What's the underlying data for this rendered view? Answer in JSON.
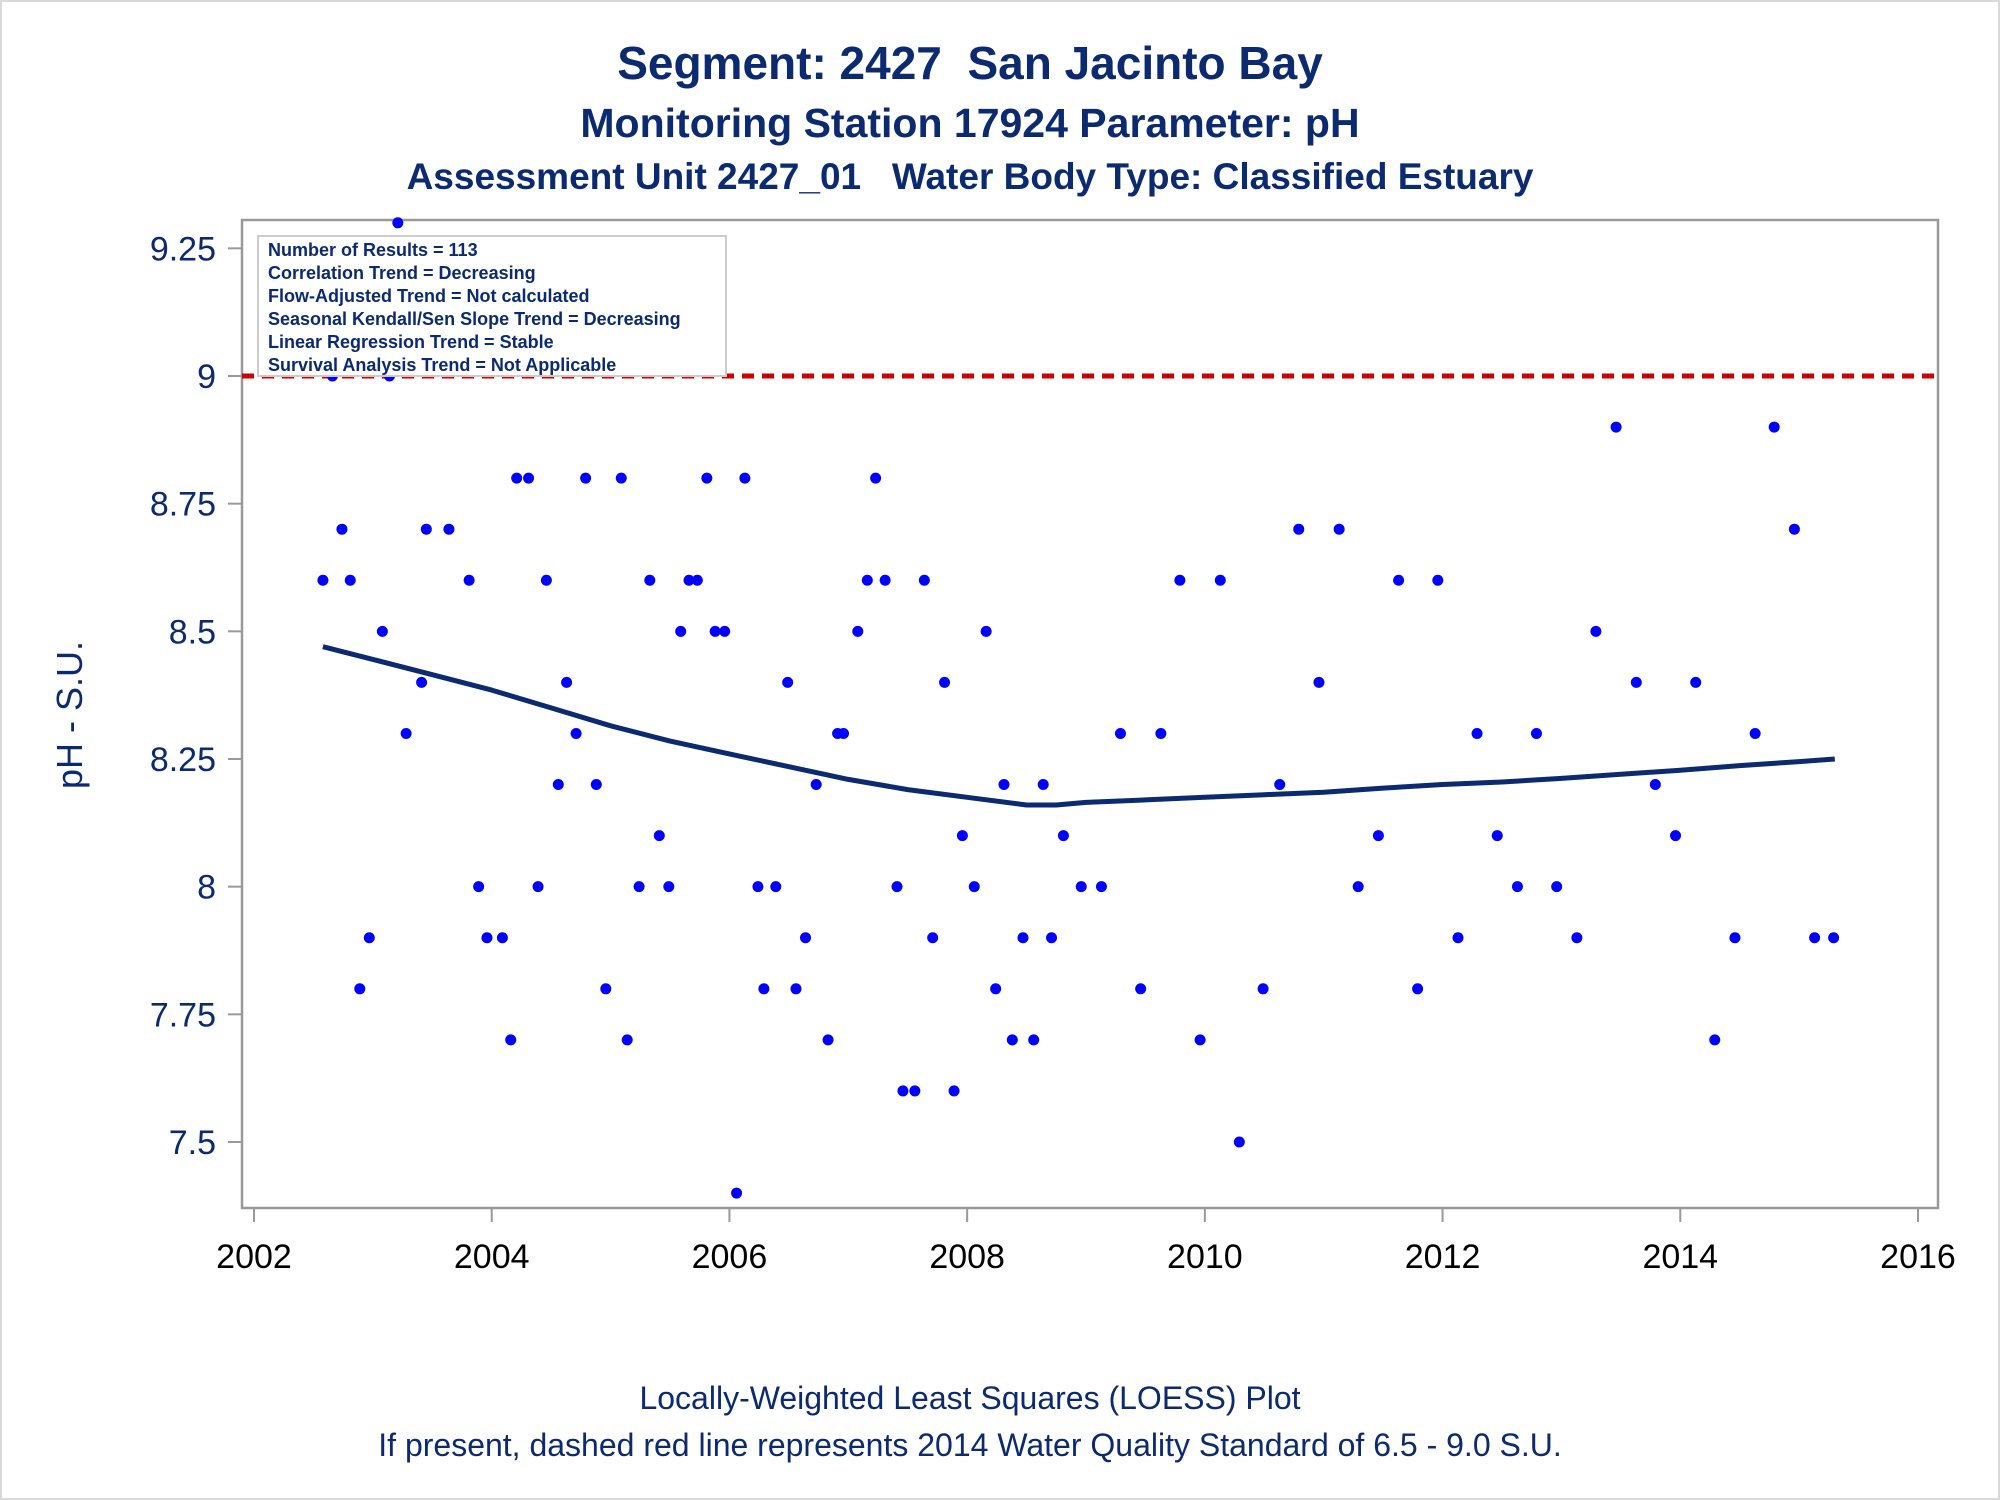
{
  "titles": {
    "line1": "Segment: 2427  San Jacinto Bay",
    "line2": "Monitoring Station 17924 Parameter: pH",
    "line3": "Assessment Unit 2427_01   Water Body Type: Classified Estuary"
  },
  "footnotes": {
    "line1": "Locally-Weighted Least Squares (LOESS) Plot",
    "line2": "If present, dashed red line represents 2014 Water Quality Standard of 6.5 - 9.0 S.U."
  },
  "stats_box": [
    "Number of Results = 113",
    "Correlation Trend = Decreasing",
    "Flow-Adjusted Trend = Not calculated",
    "Seasonal Kendall/Sen Slope Trend = Decreasing",
    "Linear Regression Trend = Stable",
    "Survival Analysis Trend = Not Applicable"
  ],
  "colors": {
    "text": "#0b2a6f",
    "points": "#0000ff",
    "loess": "#0b2a6f",
    "standard_line": "#cc0000",
    "axis": "#999999"
  },
  "chart_data": {
    "type": "scatter",
    "xlabel": "",
    "ylabel": "pH - S.U.",
    "xlim": [
      2002,
      2016
    ],
    "ylim": [
      7.4,
      9.3
    ],
    "x_ticks": [
      "2002",
      "2004",
      "2006",
      "2008",
      "2010",
      "2012",
      "2014",
      "2016"
    ],
    "y_ticks": [
      "7.5",
      "7.75",
      "8",
      "8.25",
      "8.5",
      "8.75",
      "9",
      "9.25"
    ],
    "grid": false,
    "reference_line": {
      "y": 9.0,
      "style": "dashed"
    },
    "series": [
      {
        "type": "scatter",
        "points": [
          [
            2002.58,
            8.6
          ],
          [
            2002.66,
            9.0
          ],
          [
            2002.74,
            8.7
          ],
          [
            2002.81,
            8.6
          ],
          [
            2002.89,
            7.8
          ],
          [
            2002.97,
            7.9
          ],
          [
            2003.08,
            8.5
          ],
          [
            2003.14,
            9.0
          ],
          [
            2003.21,
            9.3
          ],
          [
            2003.28,
            8.3
          ],
          [
            2003.41,
            8.4
          ],
          [
            2003.45,
            8.7
          ],
          [
            2003.64,
            8.7
          ],
          [
            2003.81,
            8.6
          ],
          [
            2003.89,
            8.0
          ],
          [
            2003.96,
            7.9
          ],
          [
            2004.09,
            7.9
          ],
          [
            2004.16,
            7.7
          ],
          [
            2004.21,
            8.8
          ],
          [
            2004.31,
            8.8
          ],
          [
            2004.39,
            8.0
          ],
          [
            2004.46,
            8.6
          ],
          [
            2004.56,
            8.2
          ],
          [
            2004.63,
            8.4
          ],
          [
            2004.71,
            8.3
          ],
          [
            2004.79,
            8.8
          ],
          [
            2004.88,
            8.2
          ],
          [
            2004.96,
            7.8
          ],
          [
            2005.09,
            8.8
          ],
          [
            2005.14,
            7.7
          ],
          [
            2005.24,
            8.0
          ],
          [
            2005.33,
            8.6
          ],
          [
            2005.41,
            8.1
          ],
          [
            2005.49,
            8.0
          ],
          [
            2005.59,
            8.5
          ],
          [
            2005.66,
            8.6
          ],
          [
            2005.73,
            8.6
          ],
          [
            2005.81,
            8.8
          ],
          [
            2005.88,
            8.5
          ],
          [
            2005.96,
            8.5
          ],
          [
            2006.06,
            7.4
          ],
          [
            2006.13,
            8.8
          ],
          [
            2006.24,
            8.0
          ],
          [
            2006.29,
            7.8
          ],
          [
            2006.39,
            8.0
          ],
          [
            2006.49,
            8.4
          ],
          [
            2006.56,
            7.8
          ],
          [
            2006.64,
            7.9
          ],
          [
            2006.73,
            8.2
          ],
          [
            2006.83,
            7.7
          ],
          [
            2006.91,
            8.3
          ],
          [
            2006.96,
            8.3
          ],
          [
            2007.08,
            8.5
          ],
          [
            2007.16,
            8.6
          ],
          [
            2007.23,
            8.8
          ],
          [
            2007.31,
            8.6
          ],
          [
            2007.41,
            8.0
          ],
          [
            2007.46,
            7.6
          ],
          [
            2007.56,
            7.6
          ],
          [
            2007.64,
            8.6
          ],
          [
            2007.71,
            7.9
          ],
          [
            2007.81,
            8.4
          ],
          [
            2007.89,
            7.6
          ],
          [
            2007.96,
            8.1
          ],
          [
            2008.06,
            8.0
          ],
          [
            2008.16,
            8.5
          ],
          [
            2008.24,
            7.8
          ],
          [
            2008.31,
            8.2
          ],
          [
            2008.38,
            7.7
          ],
          [
            2008.47,
            7.9
          ],
          [
            2008.56,
            7.7
          ],
          [
            2008.64,
            8.2
          ],
          [
            2008.71,
            7.9
          ],
          [
            2008.81,
            8.1
          ],
          [
            2008.96,
            8.0
          ],
          [
            2009.13,
            8.0
          ],
          [
            2009.29,
            8.3
          ],
          [
            2009.46,
            7.8
          ],
          [
            2009.63,
            8.3
          ],
          [
            2009.79,
            8.6
          ],
          [
            2009.96,
            7.7
          ],
          [
            2010.13,
            8.6
          ],
          [
            2010.29,
            7.5
          ],
          [
            2010.49,
            7.8
          ],
          [
            2010.63,
            8.2
          ],
          [
            2010.79,
            8.7
          ],
          [
            2010.96,
            8.4
          ],
          [
            2011.13,
            8.7
          ],
          [
            2011.29,
            8.0
          ],
          [
            2011.46,
            8.1
          ],
          [
            2011.63,
            8.6
          ],
          [
            2011.79,
            7.8
          ],
          [
            2011.96,
            8.6
          ],
          [
            2012.13,
            7.9
          ],
          [
            2012.29,
            8.3
          ],
          [
            2012.46,
            8.1
          ],
          [
            2012.63,
            8.0
          ],
          [
            2012.79,
            8.3
          ],
          [
            2012.96,
            8.0
          ],
          [
            2013.13,
            7.9
          ],
          [
            2013.29,
            8.5
          ],
          [
            2013.46,
            8.9
          ],
          [
            2013.63,
            8.4
          ],
          [
            2013.79,
            8.2
          ],
          [
            2013.96,
            8.1
          ],
          [
            2014.13,
            8.4
          ],
          [
            2014.29,
            7.7
          ],
          [
            2014.46,
            7.9
          ],
          [
            2014.63,
            8.3
          ],
          [
            2014.79,
            8.9
          ],
          [
            2014.96,
            8.7
          ],
          [
            2015.13,
            7.9
          ],
          [
            2015.29,
            7.9
          ]
        ]
      },
      {
        "type": "line",
        "points": [
          [
            2002.58,
            8.47
          ],
          [
            2003.0,
            8.445
          ],
          [
            2003.5,
            8.415
          ],
          [
            2004.0,
            8.385
          ],
          [
            2004.5,
            8.35
          ],
          [
            2005.0,
            8.315
          ],
          [
            2005.5,
            8.285
          ],
          [
            2006.0,
            8.26
          ],
          [
            2006.5,
            8.235
          ],
          [
            2007.0,
            8.21
          ],
          [
            2007.5,
            8.19
          ],
          [
            2008.0,
            8.175
          ],
          [
            2008.5,
            8.16
          ],
          [
            2008.75,
            8.16
          ],
          [
            2009.0,
            8.165
          ],
          [
            2009.5,
            8.17
          ],
          [
            2010.0,
            8.175
          ],
          [
            2010.5,
            8.18
          ],
          [
            2011.0,
            8.185
          ],
          [
            2011.5,
            8.193
          ],
          [
            2012.0,
            8.2
          ],
          [
            2012.5,
            8.205
          ],
          [
            2013.0,
            8.212
          ],
          [
            2013.5,
            8.22
          ],
          [
            2014.0,
            8.228
          ],
          [
            2014.5,
            8.237
          ],
          [
            2015.0,
            8.245
          ],
          [
            2015.3,
            8.25
          ]
        ]
      }
    ]
  }
}
